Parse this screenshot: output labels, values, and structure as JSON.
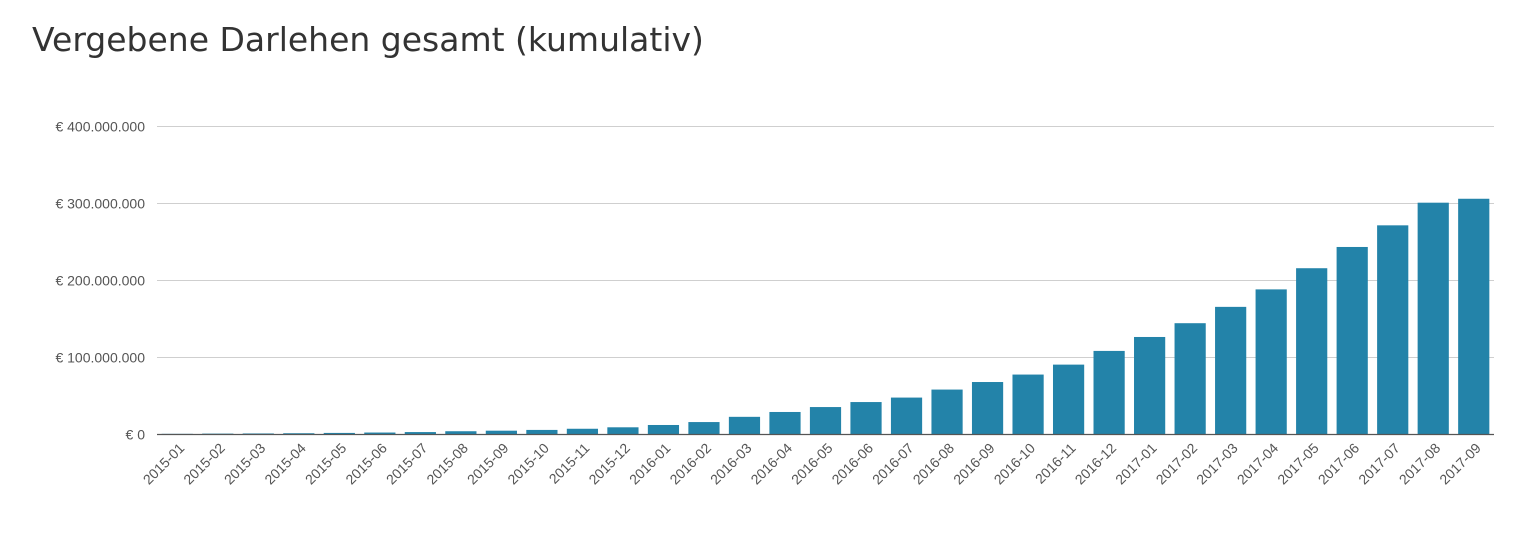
{
  "chart_data": {
    "type": "bar",
    "title": "Vergebene Darlehen gesamt (kumulativ)",
    "xlabel": "",
    "ylabel": "",
    "ylim": [
      0,
      400000000
    ],
    "yticks": [
      {
        "value": 0,
        "label": "€ 0"
      },
      {
        "value": 100000000,
        "label": "€ 100.000.000"
      },
      {
        "value": 200000000,
        "label": "€ 200.000.000"
      },
      {
        "value": 300000000,
        "label": "€ 300.000.000"
      },
      {
        "value": 400000000,
        "label": "€ 400.000.000"
      }
    ],
    "grid": true,
    "legend": "none",
    "bar_color": "#2383a9",
    "categories": [
      "2015-01",
      "2015-02",
      "2015-03",
      "2015-04",
      "2015-05",
      "2015-06",
      "2015-07",
      "2015-08",
      "2015-09",
      "2015-10",
      "2015-11",
      "2015-12",
      "2016-01",
      "2016-02",
      "2016-03",
      "2016-04",
      "2016-05",
      "2016-06",
      "2016-07",
      "2016-08",
      "2016-09",
      "2016-10",
      "2016-11",
      "2016-12",
      "2017-01",
      "2017-02",
      "2017-03",
      "2017-04",
      "2017-05",
      "2017-06",
      "2017-07",
      "2017-08",
      "2017-09"
    ],
    "values": [
      200000,
      500000,
      700000,
      1000000,
      1400000,
      1900000,
      2500000,
      3600000,
      4300000,
      5300000,
      6800000,
      8700000,
      11700000,
      15500000,
      22300000,
      28600000,
      35000000,
      41500000,
      47300000,
      57700000,
      67500000,
      77200000,
      90100000,
      107900000,
      126000000,
      143900000,
      165100000,
      187800000,
      215300000,
      242900000,
      271000000,
      300400000,
      305500000
    ]
  }
}
